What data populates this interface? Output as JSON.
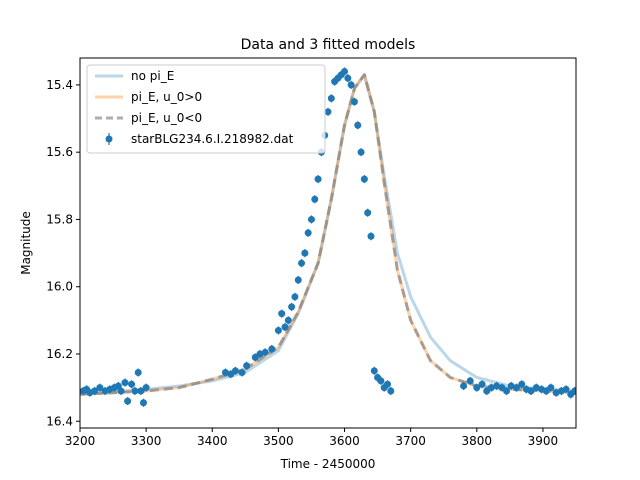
{
  "chart_data": {
    "type": "scatter",
    "title": "Data and 3 fitted models",
    "xlabel": "Time - 2450000",
    "ylabel": "Magnitude",
    "xlim": [
      3200,
      3950
    ],
    "ylim": [
      16.42,
      15.32
    ],
    "y_inverted": true,
    "grid": false,
    "legend_position": "top-left",
    "x_ticks": [
      3200,
      3300,
      3400,
      3500,
      3600,
      3700,
      3800,
      3900
    ],
    "y_ticks": [
      15.4,
      15.6,
      15.8,
      16.0,
      16.2,
      16.4
    ],
    "x_tick_labels": [
      "3200",
      "3300",
      "3400",
      "3500",
      "3600",
      "3700",
      "3800",
      "3900"
    ],
    "y_tick_labels": [
      "15.4",
      "15.6",
      "15.8",
      "16.0",
      "16.2",
      "16.4"
    ],
    "colors": {
      "data": "#1f77b4",
      "no_pi_E": "#1f77b4",
      "pi_E_pos": "#ff7f0e",
      "pi_E_neg": "#808080"
    },
    "series": [
      {
        "name": "no pi_E",
        "kind": "line",
        "style": "solid",
        "x": [
          3200,
          3250,
          3300,
          3350,
          3400,
          3450,
          3500,
          3530,
          3560,
          3580,
          3600,
          3615,
          3630,
          3645,
          3660,
          3680,
          3700,
          3730,
          3760,
          3800,
          3850,
          3900,
          3950
        ],
        "y": [
          16.315,
          16.312,
          16.305,
          16.295,
          16.28,
          16.255,
          16.19,
          16.08,
          15.93,
          15.74,
          15.52,
          15.41,
          15.37,
          15.48,
          15.67,
          15.9,
          16.03,
          16.15,
          16.22,
          16.27,
          16.295,
          16.305,
          16.31
        ]
      },
      {
        "name": "pi_E, u_0>0",
        "kind": "line",
        "style": "solid",
        "x": [
          3200,
          3250,
          3300,
          3350,
          3400,
          3450,
          3500,
          3530,
          3560,
          3580,
          3600,
          3615,
          3630,
          3645,
          3660,
          3680,
          3700,
          3730,
          3760,
          3800,
          3850,
          3900,
          3950
        ],
        "y": [
          16.32,
          16.315,
          16.31,
          16.3,
          16.275,
          16.245,
          16.18,
          16.075,
          15.93,
          15.74,
          15.52,
          15.41,
          15.37,
          15.48,
          15.69,
          15.95,
          16.1,
          16.22,
          16.27,
          16.295,
          16.305,
          16.31,
          16.315
        ]
      },
      {
        "name": "pi_E, u_0<0",
        "kind": "line",
        "style": "dashed",
        "x": [
          3200,
          3250,
          3300,
          3350,
          3400,
          3450,
          3500,
          3530,
          3560,
          3580,
          3600,
          3615,
          3630,
          3645,
          3660,
          3680,
          3700,
          3730,
          3760,
          3800,
          3850,
          3900,
          3950
        ],
        "y": [
          16.32,
          16.315,
          16.31,
          16.3,
          16.275,
          16.245,
          16.18,
          16.075,
          15.93,
          15.74,
          15.52,
          15.41,
          15.37,
          15.48,
          15.69,
          15.95,
          16.1,
          16.22,
          16.27,
          16.295,
          16.305,
          16.31,
          16.315
        ]
      },
      {
        "name": "starBLG234.6.I.218982.dat",
        "kind": "errorbar",
        "x": [
          3205,
          3210,
          3215,
          3222,
          3230,
          3238,
          3245,
          3252,
          3258,
          3262,
          3268,
          3272,
          3278,
          3283,
          3288,
          3292,
          3296,
          3300,
          3420,
          3428,
          3435,
          3445,
          3452,
          3465,
          3472,
          3480,
          3490,
          3500,
          3505,
          3510,
          3515,
          3520,
          3525,
          3530,
          3535,
          3540,
          3545,
          3550,
          3555,
          3560,
          3565,
          3570,
          3575,
          3580,
          3585,
          3590,
          3595,
          3600,
          3605,
          3610,
          3615,
          3620,
          3625,
          3630,
          3635,
          3640,
          3645,
          3650,
          3655,
          3660,
          3665,
          3670,
          3780,
          3790,
          3800,
          3808,
          3815,
          3822,
          3830,
          3838,
          3845,
          3852,
          3860,
          3868,
          3875,
          3882,
          3890,
          3898,
          3905,
          3912,
          3920,
          3928,
          3935,
          3942,
          3948
        ],
        "y": [
          16.31,
          16.305,
          16.315,
          16.31,
          16.3,
          16.31,
          16.305,
          16.3,
          16.295,
          16.31,
          16.285,
          16.34,
          16.29,
          16.31,
          16.255,
          16.31,
          16.345,
          16.3,
          16.255,
          16.26,
          16.25,
          16.255,
          16.235,
          16.21,
          16.2,
          16.195,
          16.185,
          16.13,
          16.08,
          16.12,
          16.1,
          16.06,
          16.03,
          15.98,
          15.93,
          15.9,
          15.84,
          15.8,
          15.74,
          15.68,
          15.6,
          15.55,
          15.48,
          15.44,
          15.39,
          15.38,
          15.37,
          15.36,
          15.38,
          15.4,
          15.45,
          15.52,
          15.6,
          15.68,
          15.78,
          15.85,
          16.25,
          16.27,
          16.28,
          16.3,
          16.29,
          16.31,
          16.295,
          16.28,
          16.3,
          16.29,
          16.31,
          16.3,
          16.295,
          16.3,
          16.31,
          16.295,
          16.3,
          16.29,
          16.305,
          16.31,
          16.3,
          16.305,
          16.31,
          16.3,
          16.315,
          16.31,
          16.305,
          16.32,
          16.31
        ],
        "error": 0.012
      }
    ]
  }
}
